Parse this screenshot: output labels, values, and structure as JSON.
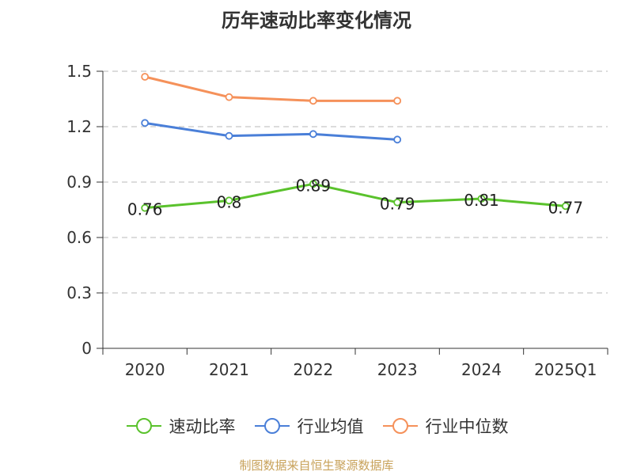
{
  "chart_data": {
    "type": "line",
    "title": "历年速动比率变化情况",
    "categories": [
      "2020",
      "2021",
      "2022",
      "2023",
      "2024",
      "2025Q1"
    ],
    "ylim": [
      0,
      1.5
    ],
    "yticks": [
      "0",
      "0.3",
      "0.6",
      "0.9",
      "1.2",
      "1.5"
    ],
    "ytick_values": [
      0,
      0.3,
      0.6,
      0.9,
      1.2,
      1.5
    ],
    "grid": true,
    "legend_position": "bottom",
    "series": [
      {
        "name": "速动比率",
        "color": "#5ac22c",
        "values": [
          0.76,
          0.8,
          0.89,
          0.79,
          0.81,
          0.77
        ],
        "labels": [
          "0.76",
          "0.8",
          "0.89",
          "0.79",
          "0.81",
          "0.77"
        ]
      },
      {
        "name": "行业均值",
        "color": "#4a7fd8",
        "values": [
          1.22,
          1.15,
          1.16,
          1.13,
          null,
          null
        ]
      },
      {
        "name": "行业中位数",
        "color": "#f5915a",
        "values": [
          1.47,
          1.36,
          1.34,
          1.34,
          null,
          null
        ]
      }
    ],
    "source": "制图数据来自恒生聚源数据库"
  }
}
